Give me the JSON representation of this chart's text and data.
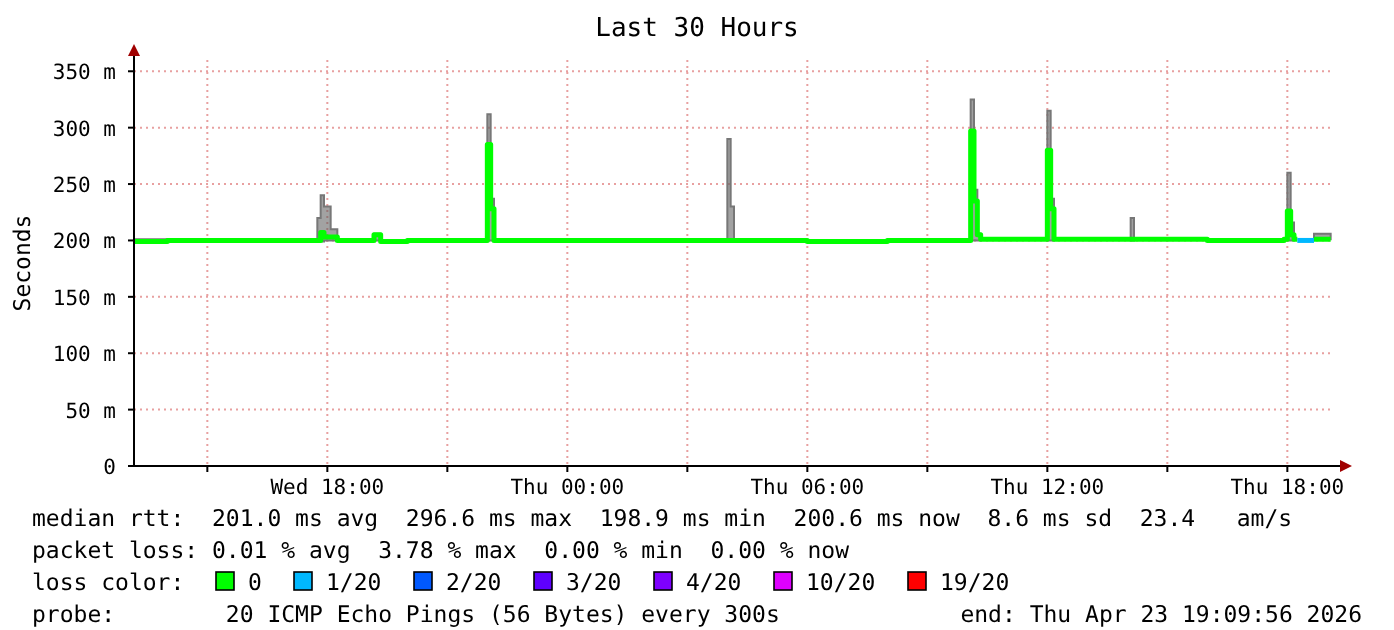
{
  "chart_data": {
    "type": "line",
    "title": "Last 30 Hours",
    "ylabel": "Seconds",
    "xlim": [
      "2026-04-22T13:10",
      "2026-04-23T19:10"
    ],
    "xticks": [
      {
        "value": "2026-04-22T15:00",
        "label": null
      },
      {
        "value": "2026-04-22T18:00",
        "label": "Wed 18:00"
      },
      {
        "value": "2026-04-22T21:00",
        "label": null
      },
      {
        "value": "2026-04-23T00:00",
        "label": "Thu 00:00"
      },
      {
        "value": "2026-04-23T03:00",
        "label": null
      },
      {
        "value": "2026-04-23T06:00",
        "label": "Thu 06:00"
      },
      {
        "value": "2026-04-23T09:00",
        "label": null
      },
      {
        "value": "2026-04-23T12:00",
        "label": "Thu 12:00"
      },
      {
        "value": "2026-04-23T15:00",
        "label": null
      },
      {
        "value": "2026-04-23T18:00",
        "label": "Thu 18:00"
      }
    ],
    "ylim": [
      0,
      360
    ],
    "yticks": [
      0,
      {
        "value": 50,
        "label": "50 m"
      },
      {
        "value": 100,
        "label": "100 m"
      },
      {
        "value": 150,
        "label": "150 m"
      },
      {
        "value": 200,
        "label": "200 m"
      },
      {
        "value": 250,
        "label": "250 m"
      },
      {
        "value": 300,
        "label": "300 m"
      },
      {
        "value": 350,
        "label": "350 m"
      }
    ],
    "grid": true,
    "legend": "bottom",
    "legend_title": "loss color:",
    "series": [
      {
        "name": "0",
        "color": "#00ff00",
        "x": [
          "2026-04-22T13:10",
          "2026-04-22T14:00",
          "2026-04-22T15:00",
          "2026-04-22T16:00",
          "2026-04-22T17:00",
          "2026-04-22T17:45",
          "2026-04-22T17:50",
          "2026-04-22T17:55",
          "2026-04-22T18:05",
          "2026-04-22T18:15",
          "2026-04-22T19:00",
          "2026-04-22T19:10",
          "2026-04-22T19:20",
          "2026-04-22T20:00",
          "2026-04-22T21:55",
          "2026-04-22T22:00",
          "2026-04-22T22:05",
          "2026-04-22T22:10",
          "2026-04-22T23:00",
          "2026-04-23T00:00",
          "2026-04-23T02:00",
          "2026-04-23T03:55",
          "2026-04-23T04:00",
          "2026-04-23T04:05",
          "2026-04-23T04:10",
          "2026-04-23T06:00",
          "2026-04-23T08:00",
          "2026-04-23T10:00",
          "2026-04-23T10:05",
          "2026-04-23T10:10",
          "2026-04-23T10:15",
          "2026-04-23T10:20",
          "2026-04-23T11:55",
          "2026-04-23T12:00",
          "2026-04-23T12:05",
          "2026-04-23T12:10",
          "2026-04-23T14:00",
          "2026-04-23T14:05",
          "2026-04-23T14:10",
          "2026-04-23T16:00",
          "2026-04-23T17:55",
          "2026-04-23T18:00",
          "2026-04-23T18:05",
          "2026-04-23T18:10",
          "2026-04-23T18:15",
          "2026-04-23T18:25",
          "2026-04-23T18:40",
          "2026-04-23T19:05"
        ],
        "values": [
          199,
          200,
          200,
          200,
          200,
          200,
          207,
          203,
          203,
          200,
          200,
          205,
          199,
          200,
          200,
          285,
          228,
          200,
          200,
          200,
          200,
          200,
          200,
          200,
          200,
          199,
          200,
          200,
          297,
          235,
          205,
          201,
          201,
          280,
          228,
          201,
          201,
          201,
          201,
          200,
          201,
          226,
          205,
          201,
          201,
          null,
          201,
          201
        ],
        "lower": [
          199,
          200,
          200,
          200,
          200,
          200,
          199,
          200,
          200,
          200,
          200,
          200,
          199,
          200,
          200,
          200,
          200,
          200,
          200,
          200,
          200,
          200,
          200,
          200,
          200,
          199,
          200,
          200,
          200,
          200,
          200,
          201,
          201,
          200,
          200,
          201,
          201,
          200,
          201,
          200,
          201,
          200,
          200,
          201,
          201,
          null,
          201,
          201
        ],
        "upper": [
          201,
          200,
          200,
          200,
          200,
          220,
          240,
          230,
          210,
          200,
          200,
          206,
          199,
          200,
          200,
          312,
          237,
          200,
          200,
          200,
          200,
          200,
          290,
          230,
          200,
          199,
          200,
          200,
          325,
          245,
          206,
          201,
          201,
          315,
          237,
          201,
          201,
          220,
          201,
          200,
          201,
          260,
          216,
          201,
          201,
          null,
          206,
          206
        ]
      },
      {
        "name": "1/20",
        "color": "#00b8ff",
        "x": [
          "2026-04-23T18:15",
          "2026-04-23T18:40"
        ],
        "values": [
          200,
          200
        ]
      },
      {
        "name": "2/20",
        "color": "#0059ff"
      },
      {
        "name": "3/20",
        "color": "#5e00ff"
      },
      {
        "name": "4/20",
        "color": "#7e00ff"
      },
      {
        "name": "10/20",
        "color": "#dd00ff"
      },
      {
        "name": "19/20",
        "color": "#ff0000"
      }
    ],
    "annotations": [
      "median rtt:  201.0 ms avg  296.6 ms max  198.9 ms min  200.6 ms now  8.6 ms sd  23.4   am/s",
      "packet loss: 0.01 % avg  3.78 % max  0.00 % min  0.00 % now",
      "probe:        20 ICMP Echo Pings (56 Bytes) every 300s",
      "end: Thu Apr 23 19:09:56 2026"
    ]
  }
}
